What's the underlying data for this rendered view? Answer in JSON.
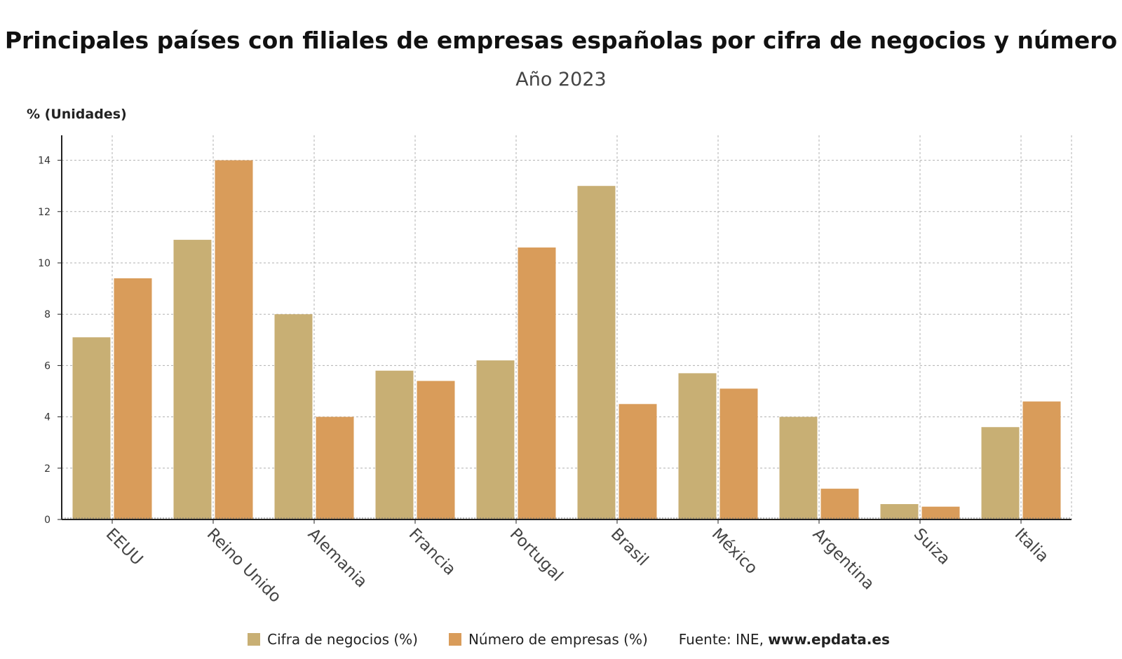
{
  "title": "Principales países con filiales de empresas españolas por cifra de negocios y número",
  "subtitle": "Año 2023",
  "source_label": "Fuente: INE,",
  "source_url": "www.epdata.es",
  "colors": {
    "cifra": "#c8af74",
    "numero": "#d99c5a",
    "grid": "#b0b0b0",
    "axis": "#222222"
  },
  "chart_data": {
    "type": "bar",
    "ylabel": "% (Unidades)",
    "ylim": [
      0,
      15
    ],
    "yticks": [
      0,
      2,
      4,
      6,
      8,
      10,
      12,
      14
    ],
    "grid": true,
    "legend_position": "bottom",
    "categories": [
      "EEUU",
      "Reino Unido",
      "Alemania",
      "Francia",
      "Portugal",
      "Brasil",
      "México",
      "Argentina",
      "Suiza",
      "Italia"
    ],
    "series": [
      {
        "name": "Cifra de negocios (%)",
        "values": [
          7.1,
          10.9,
          8.0,
          5.8,
          6.2,
          13.0,
          5.7,
          4.0,
          0.6,
          3.6
        ]
      },
      {
        "name": "Número de empresas (%)",
        "values": [
          9.4,
          14.0,
          4.0,
          5.4,
          10.6,
          4.5,
          5.1,
          1.2,
          0.5,
          4.6
        ]
      }
    ]
  }
}
